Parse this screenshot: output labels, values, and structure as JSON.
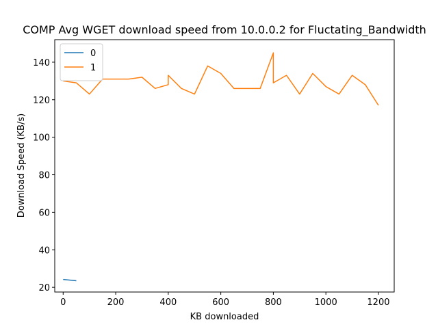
{
  "chart_data": {
    "type": "line",
    "title": "COMP Avg WGET download speed from 10.0.0.2 for Fluctating_Bandwidth",
    "xlabel": "KB downloaded",
    "ylabel": "Download Speed (KB/s)",
    "xlim": [
      -32,
      1260
    ],
    "ylim": [
      17.5,
      152
    ],
    "xticks": [
      0,
      200,
      400,
      600,
      800,
      1000,
      1200
    ],
    "yticks": [
      20,
      40,
      60,
      80,
      100,
      120,
      140
    ],
    "grid": false,
    "legend_position": "top-left",
    "series": [
      {
        "name": "0",
        "color": "#1f77b4",
        "x": [
          0,
          50
        ],
        "y": [
          24.2,
          23.5
        ]
      },
      {
        "name": "1",
        "color": "#ff7f0e",
        "x": [
          0,
          50,
          100,
          150,
          200,
          250,
          300,
          350,
          400,
          400,
          450,
          500,
          550,
          600,
          650,
          700,
          750,
          800,
          800,
          850,
          900,
          950,
          1000,
          1050,
          1100,
          1150,
          1200
        ],
        "y": [
          130,
          129,
          123,
          131,
          131,
          131,
          132,
          126,
          128,
          133,
          126,
          123,
          138,
          134,
          126,
          126,
          126,
          145,
          129,
          133,
          123,
          134,
          127,
          123,
          133,
          128,
          117
        ]
      }
    ]
  }
}
